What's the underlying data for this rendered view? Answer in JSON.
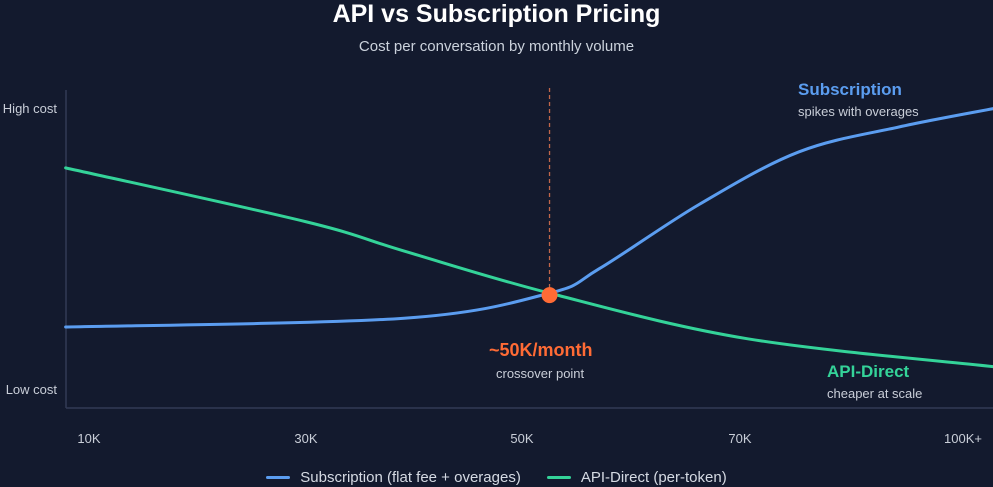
{
  "chart_data": {
    "type": "line",
    "title": "API vs Subscription Pricing",
    "subtitle": "Cost per conversation by monthly volume",
    "x_ticks": [
      "10K",
      "30K",
      "50K",
      "70K",
      "100K+"
    ],
    "y_ticks": {
      "high": "High cost",
      "low": "Low cost"
    },
    "y_range": [
      0,
      100
    ],
    "grid": false,
    "legend_position": "bottom",
    "series": [
      {
        "name": "Subscription (flat fee + overages)",
        "color": "#5b9df0",
        "points": [
          [
            -0.14,
            25
          ],
          [
            1.42,
            28
          ],
          [
            2.09,
            36.6
          ],
          [
            2.32,
            45
          ],
          [
            2.78,
            67
          ],
          [
            3.24,
            85
          ],
          [
            3.7,
            93.5
          ],
          [
            4.15,
            100
          ]
        ]
      },
      {
        "name": "API-Direct (per-token)",
        "color": "#34d399",
        "points": [
          [
            -0.14,
            79.5
          ],
          [
            0.97,
            61
          ],
          [
            1.42,
            51
          ],
          [
            2.09,
            36.6
          ],
          [
            3.0,
            21
          ],
          [
            4.15,
            11.3
          ]
        ]
      }
    ],
    "crossover": {
      "x": 2.09,
      "y": 36.6,
      "label": "~50K/month",
      "sublabel": "crossover point",
      "color": "#ff6b35"
    },
    "annotations": {
      "subscription": {
        "label": "Subscription",
        "sublabel": "spikes with overages"
      },
      "api": {
        "label": "API-Direct",
        "sublabel": "cheaper at scale"
      }
    }
  }
}
